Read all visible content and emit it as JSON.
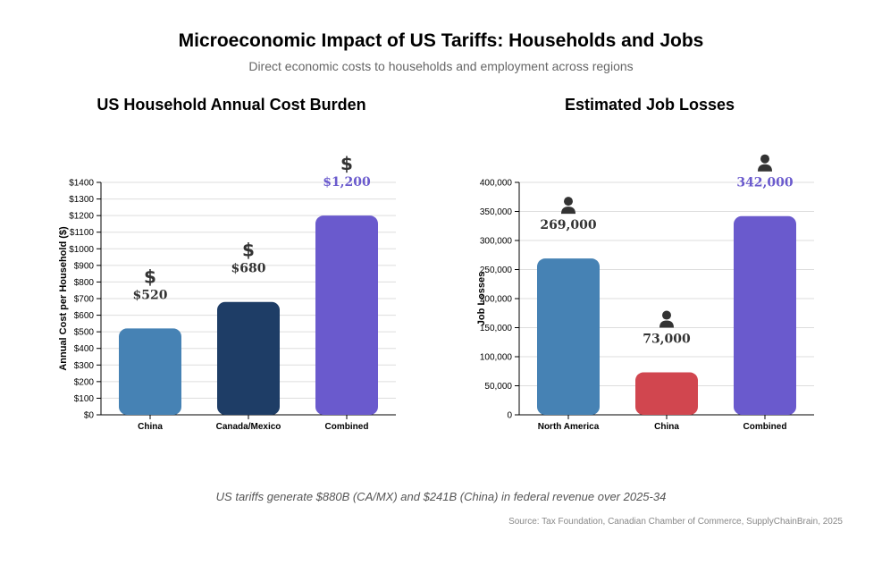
{
  "title": "Microeconomic Impact of US Tariffs: Households and Jobs",
  "subtitle": "Direct economic costs to households and employment across regions",
  "footnote": "US tariffs generate $880B (CA/MX) and $241B (China) in federal revenue over 2025-34",
  "source": "Source: Tax Foundation, Canadian Chamber of Commerce, SupplyChainBrain, 2025",
  "chart_data": [
    {
      "type": "bar",
      "title": "US Household Annual Cost Burden",
      "xlabel": "",
      "ylabel": "Annual Cost per Household ($)",
      "categories": [
        "China",
        "Canada/Mexico",
        "Combined"
      ],
      "values": [
        520,
        680,
        1200
      ],
      "value_labels": [
        "$520",
        "$680",
        "$1,200"
      ],
      "colors": [
        "#4682b4",
        "#1e3d66",
        "#6a5acd"
      ],
      "label_colors": [
        "#333333",
        "#333333",
        "#6a5acd"
      ],
      "icon": "dollar-icon",
      "ylim": [
        0,
        1400
      ],
      "yticks": [
        0,
        100,
        200,
        300,
        400,
        500,
        600,
        700,
        800,
        900,
        1000,
        1100,
        1200,
        1300,
        1400
      ],
      "ytick_labels": [
        "$0",
        "$100",
        "$200",
        "$300",
        "$400",
        "$500",
        "$600",
        "$700",
        "$800",
        "$900",
        "$1000",
        "$1100",
        "$1200",
        "$1300",
        "$1400"
      ],
      "grid": true
    },
    {
      "type": "bar",
      "title": "Estimated Job Losses",
      "xlabel": "",
      "ylabel": "Job Losses",
      "categories": [
        "North America",
        "China",
        "Combined"
      ],
      "values": [
        269000,
        73000,
        342000
      ],
      "value_labels": [
        "269,000",
        "73,000",
        "342,000"
      ],
      "colors": [
        "#4682b4",
        "#d1464f",
        "#6a5acd"
      ],
      "label_colors": [
        "#333333",
        "#333333",
        "#6a5acd"
      ],
      "icon": "person-icon",
      "ylim": [
        0,
        400000
      ],
      "yticks": [
        0,
        50000,
        100000,
        150000,
        200000,
        250000,
        300000,
        350000,
        400000
      ],
      "ytick_labels": [
        "0",
        "50,000",
        "100,000",
        "150,000",
        "200,000",
        "250,000",
        "300,000",
        "350,000",
        "400,000"
      ],
      "grid": true
    }
  ]
}
